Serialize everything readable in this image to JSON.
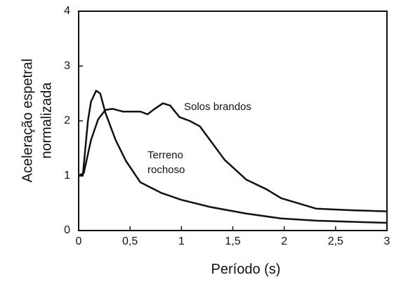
{
  "chart_data": {
    "type": "line",
    "xlabel": "Período (s)",
    "ylabel": [
      "Aceleração espetral",
      "normalizada"
    ],
    "annotations": [
      "Solos brandos",
      "Terreno",
      "rochoso"
    ],
    "xlim": [
      0,
      3
    ],
    "ylim": [
      0,
      4
    ],
    "xticks": [
      0,
      {
        "value": 0.5,
        "label": "0,5"
      },
      1,
      {
        "value": 1.5,
        "label": "1,5"
      },
      2,
      {
        "value": 2.5,
        "label": "2,5"
      },
      3
    ],
    "yticks": [
      0,
      1,
      2,
      3,
      4
    ],
    "grid": false,
    "series": [
      {
        "color": "#111111",
        "x": [
          0,
          0.05,
          0.12,
          0.19,
          0.26,
          0.33,
          0.43,
          0.6,
          0.67,
          0.74,
          0.82,
          0.89,
          0.98,
          1.08,
          1.18,
          1.42,
          1.63,
          1.83,
          1.97,
          2.31,
          2.65,
          3.0
        ],
        "values": [
          1.0,
          1.05,
          1.65,
          2.03,
          2.2,
          2.22,
          2.17,
          2.17,
          2.12,
          2.22,
          2.32,
          2.28,
          2.07,
          2.0,
          1.9,
          1.29,
          0.93,
          0.75,
          0.59,
          0.4,
          0.37,
          0.35
        ]
      },
      {
        "color": "#111111",
        "x": [
          0,
          0.04,
          0.09,
          0.12,
          0.17,
          0.21,
          0.26,
          0.36,
          0.46,
          0.6,
          0.8,
          1.0,
          1.28,
          1.63,
          1.97,
          2.31,
          3.0
        ],
        "values": [
          1.0,
          1.0,
          2.0,
          2.35,
          2.55,
          2.5,
          2.15,
          1.65,
          1.27,
          0.88,
          0.69,
          0.56,
          0.43,
          0.31,
          0.22,
          0.18,
          0.14
        ]
      }
    ]
  }
}
